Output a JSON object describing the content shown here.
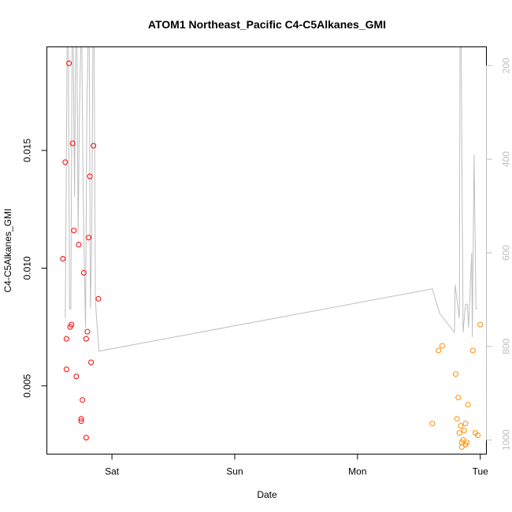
{
  "chart_data": {
    "type": "scatter",
    "title": "ATOM1 Northeast_Pacific C4-C5Alkanes_GMI",
    "xlabel": "Date",
    "ylabel": "C4-C5Alkanes_GMI",
    "x_axis": {
      "ticks": [
        {
          "label": "Sat",
          "value": 1
        },
        {
          "label": "Sun",
          "value": 2
        },
        {
          "label": "Mon",
          "value": 3
        },
        {
          "label": "Tue",
          "value": 4
        }
      ]
    },
    "xlim": [
      0.47,
      4.05
    ],
    "ylim": [
      0.0021,
      0.0194
    ],
    "y_ticks": [
      0.005,
      0.01,
      0.015
    ],
    "y_tick_labels": [
      "0.005",
      "0.010",
      "0.015"
    ],
    "right_axis": {
      "label": "",
      "ticks": [
        200,
        400,
        600,
        800,
        1000
      ],
      "lim": [
        1030,
        160
      ],
      "color": "#bebebe"
    },
    "series": [
      {
        "color": "#ff0000",
        "marker": "open-circle",
        "points": [
          [
            0.6,
            0.0104
          ],
          [
            0.62,
            0.0145
          ],
          [
            0.63,
            0.0057
          ],
          [
            0.63,
            0.007
          ],
          [
            0.65,
            0.0187
          ],
          [
            0.66,
            0.0075
          ],
          [
            0.67,
            0.0076
          ],
          [
            0.68,
            0.0153
          ],
          [
            0.69,
            0.0116
          ],
          [
            0.71,
            0.0054
          ],
          [
            0.73,
            0.011
          ],
          [
            0.75,
            0.0036
          ],
          [
            0.75,
            0.0035
          ],
          [
            0.76,
            0.0044
          ],
          [
            0.77,
            0.0098
          ],
          [
            0.79,
            0.007
          ],
          [
            0.79,
            0.0028
          ],
          [
            0.8,
            0.0073
          ],
          [
            0.81,
            0.0113
          ],
          [
            0.82,
            0.0139
          ],
          [
            0.83,
            0.006
          ],
          [
            0.85,
            0.0152
          ],
          [
            0.89,
            0.0087
          ]
        ]
      },
      {
        "color": "#ff8c00",
        "marker": "open-circle",
        "points": [
          [
            3.61,
            0.0034
          ],
          [
            3.66,
            0.0065
          ],
          [
            3.69,
            0.0067
          ],
          [
            3.8,
            0.0055
          ],
          [
            3.81,
            0.0036
          ],
          [
            3.82,
            0.0045
          ],
          [
            3.83,
            0.003
          ],
          [
            3.84,
            0.0033
          ],
          [
            3.85,
            0.0024
          ],
          [
            3.85,
            0.0026
          ],
          [
            3.86,
            0.0027
          ],
          [
            3.87,
            0.0031
          ],
          [
            3.88,
            0.0025
          ],
          [
            3.88,
            0.0034
          ],
          [
            3.89,
            0.0026
          ],
          [
            3.9,
            0.0042
          ],
          [
            3.94,
            0.0065
          ],
          [
            3.96,
            0.003
          ],
          [
            3.98,
            0.0029
          ],
          [
            4.0,
            0.0076
          ]
        ]
      },
      {
        "color": "#bebebe",
        "type": "line",
        "axis": "right",
        "points": [
          [
            0.62,
            740
          ],
          [
            0.635,
            160
          ],
          [
            0.645,
            160
          ],
          [
            0.655,
            720
          ],
          [
            0.665,
            720
          ],
          [
            0.675,
            160
          ],
          [
            0.685,
            160
          ],
          [
            0.695,
            480
          ],
          [
            0.705,
            160
          ],
          [
            0.715,
            160
          ],
          [
            0.725,
            560
          ],
          [
            0.735,
            300
          ],
          [
            0.745,
            160
          ],
          [
            0.755,
            160
          ],
          [
            0.765,
            460
          ],
          [
            0.775,
            620
          ],
          [
            0.785,
            760
          ],
          [
            0.795,
            300
          ],
          [
            0.805,
            160
          ],
          [
            0.815,
            160
          ],
          [
            0.825,
            720
          ],
          [
            0.835,
            580
          ],
          [
            0.845,
            160
          ],
          [
            0.855,
            160
          ],
          [
            0.865,
            700
          ],
          [
            0.88,
            760
          ],
          [
            0.895,
            810
          ],
          [
            3.61,
            677
          ],
          [
            3.67,
            730
          ],
          [
            3.79,
            770
          ],
          [
            3.795,
            668
          ],
          [
            3.83,
            740
          ],
          [
            3.835,
            160
          ],
          [
            3.845,
            160
          ],
          [
            3.86,
            770
          ],
          [
            3.88,
            710
          ],
          [
            3.895,
            710
          ],
          [
            3.905,
            760
          ],
          [
            3.93,
            600
          ],
          [
            3.935,
            780
          ],
          [
            3.95,
            390
          ],
          [
            3.965,
            720
          ],
          [
            3.975,
            720
          ]
        ]
      }
    ]
  }
}
